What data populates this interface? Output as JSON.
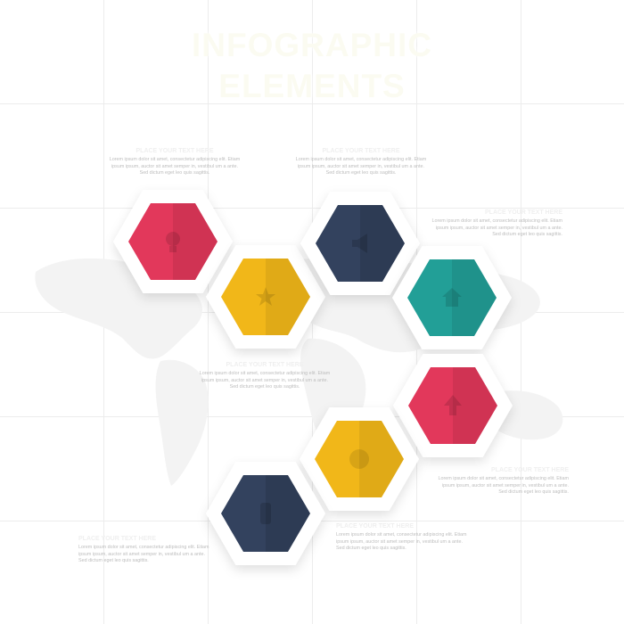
{
  "title": {
    "line1": "INFOGRAPHIC",
    "line2": "ELEMENTS"
  },
  "text_blocks": [
    {
      "heading": "PLACE YOUR TEXT HERE",
      "body": "Lorem ipsum dolor sit amet, consectetur adipiscing elit. Etiam ipsum ipsum, auctor sit amet semper in, vestibul um a ante. Sed dictum eget leo quis sagittis."
    },
    {
      "heading": "PLACE YOUR TEXT HERE",
      "body": "Lorem ipsum dolor sit amet, consectetur adipiscing elit. Etiam ipsum ipsum, auctor sit amet semper in, vestibul um a ante. Sed dictum eget leo quis sagittis."
    },
    {
      "heading": "PLACE YOUR TEXT HERE",
      "body": "Lorem ipsum dolor sit amet, consectetur adipiscing elit. Etiam ipsum ipsum, auctor sit amet semper in, vestibul um a ante. Sed dictum eget leo quis sagittis."
    },
    {
      "heading": "PLACE YOUR TEXT HERE",
      "body": "Lorem ipsum dolor sit amet, consectetur adipiscing elit. Etiam ipsum ipsum, auctor sit amet semper in, vestibul um a ante. Sed dictum eget leo quis sagittis."
    },
    {
      "heading": "PLACE YOUR TEXT HERE",
      "body": "Lorem ipsum dolor sit amet, consectetur adipiscing elit. Etiam ipsum ipsum, auctor sit amet semper in, vestibul um a ante. Sed dictum eget leo quis sagittis."
    },
    {
      "heading": "PLACE YOUR TEXT HERE",
      "body": "Lorem ipsum dolor sit amet, consectetur adipiscing elit. Etiam ipsum ipsum, auctor sit amet semper in, vestibul um a ante. Sed dictum eget leo quis sagittis."
    },
    {
      "heading": "PLACE YOUR TEXT HERE",
      "body": "Lorem ipsum dolor sit amet, consectetur adipiscing elit. Etiam ipsum ipsum, auctor sit amet semper in, vestibul um a ante. Sed dictum eget leo quis sagittis."
    }
  ],
  "hexagons": [
    {
      "color": "#e2385b",
      "icon": "lightbulb-icon"
    },
    {
      "color": "#f1b719",
      "icon": "star-icon"
    },
    {
      "color": "#33425e",
      "icon": "megaphone-icon"
    },
    {
      "color": "#229f97",
      "icon": "home-icon"
    },
    {
      "color": "#e2385b",
      "icon": "up-arrow-icon"
    },
    {
      "color": "#f1b719",
      "icon": "clock-icon"
    },
    {
      "color": "#33425e",
      "icon": "phone-icon"
    }
  ]
}
